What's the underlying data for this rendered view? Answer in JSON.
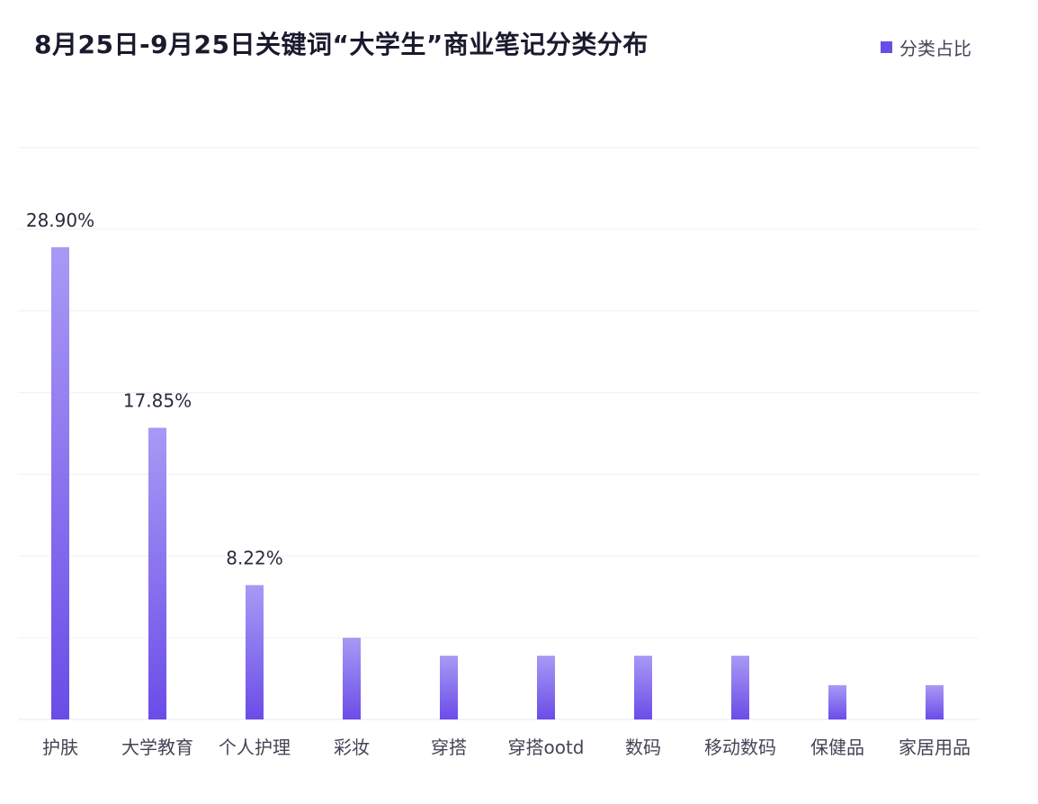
{
  "chart_data": {
    "type": "bar",
    "title": "8月25日-9月25日关键词“大学生”商业笔记分类分布",
    "categories": [
      "护肤",
      "大学教育",
      "个人护理",
      "彩妆",
      "穿搭",
      "穿搭ootd",
      "数码",
      "移动数码",
      "保健品",
      "家居用品"
    ],
    "series": [
      {
        "name": "分类占比",
        "values": [
          28.9,
          17.85,
          8.22,
          5.0,
          3.9,
          3.9,
          3.9,
          3.9,
          2.1,
          2.1
        ]
      }
    ],
    "data_labels": [
      "28.90%",
      "17.85%",
      "8.22%",
      "",
      "",
      "",
      "",
      "",
      "",
      ""
    ],
    "ylim": [
      0,
      35
    ],
    "grid": true,
    "legend_position": "top-right",
    "bar_color_top": "#a999f5",
    "bar_color_bottom": "#6a4de8",
    "grid_color": "#eef0f5"
  }
}
